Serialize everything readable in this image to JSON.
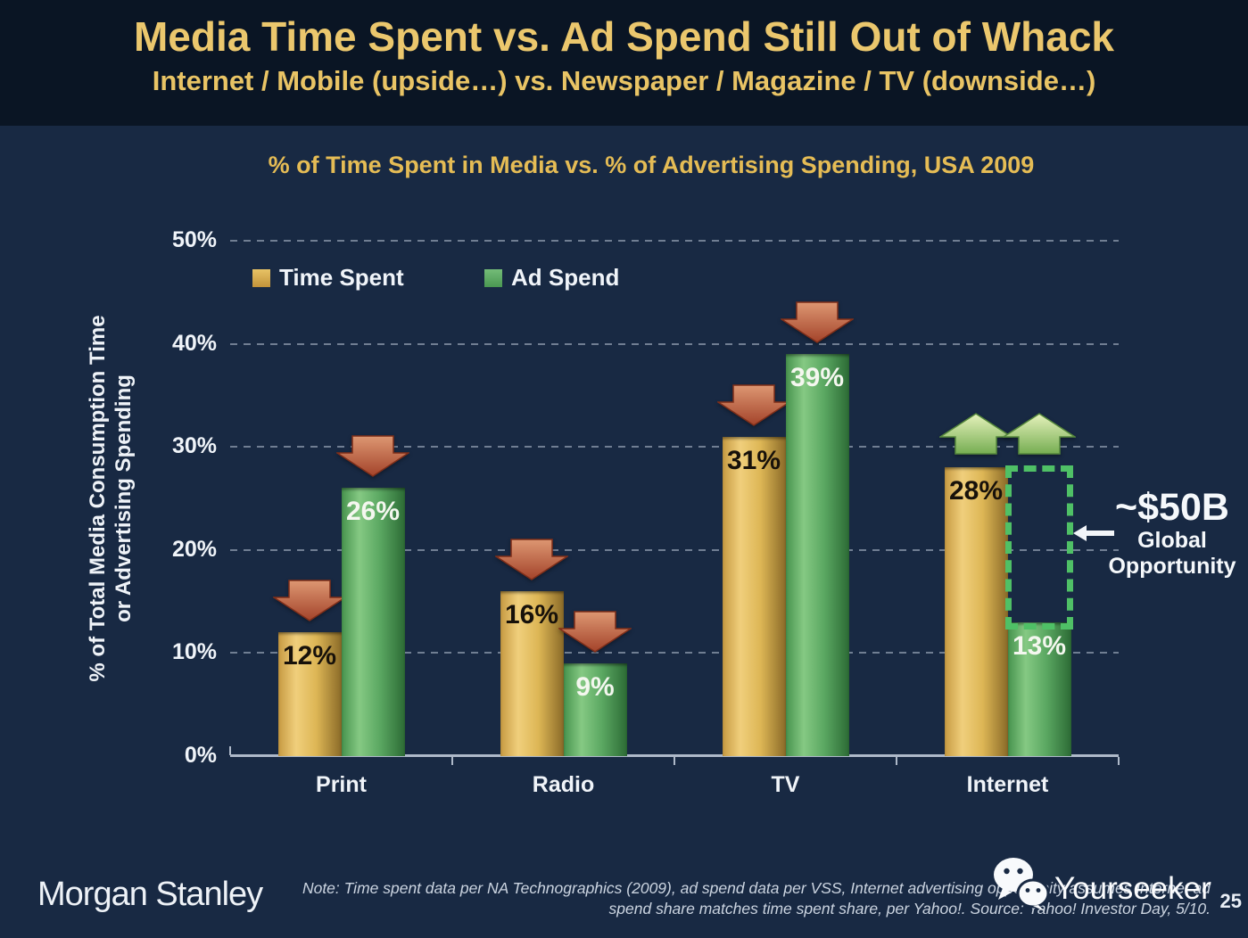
{
  "slide": {
    "title": "Media Time Spent vs. Ad Spend Still Out of Whack",
    "subtitle": "Internet / Mobile (upside…) vs. Newspaper / Magazine / TV (downside…)",
    "page_number": "25"
  },
  "chart_data": {
    "type": "bar",
    "title": "% of Time Spent in Media vs. % of Advertising Spending, USA 2009",
    "categories": [
      "Print",
      "Radio",
      "TV",
      "Internet"
    ],
    "series": [
      {
        "name": "Time Spent",
        "color": "#D9AC48",
        "values": [
          12,
          16,
          31,
          28
        ],
        "labels": [
          "12%",
          "16%",
          "31%",
          "28%"
        ]
      },
      {
        "name": "Ad Spend",
        "color": "#58A35F",
        "values": [
          26,
          9,
          39,
          13
        ],
        "labels": [
          "26%",
          "9%",
          "39%",
          "13%"
        ]
      }
    ],
    "ylabel_line1": "% of Total Media Consumption Time",
    "ylabel_line2": "or Advertising Spending",
    "ylim": [
      0,
      50
    ],
    "yticks": [
      0,
      10,
      20,
      30,
      40,
      50
    ],
    "ytick_labels": [
      "0%",
      "10%",
      "20%",
      "30%",
      "40%",
      "50%"
    ],
    "grid": "horizontal-dashed",
    "legend_position": "top-left-inside",
    "trend_arrows": {
      "Print": "down",
      "Radio": "down",
      "TV": "down",
      "Internet": "up"
    },
    "gap_highlight": {
      "category": "Internet",
      "series": "Ad Spend",
      "from": 13,
      "to": 28
    }
  },
  "annotation": {
    "amount": "~$50B",
    "line1": "Global",
    "line2": "Opportunity"
  },
  "footer": {
    "brand": "Morgan Stanley",
    "note_line1": "Note: Time spent data per NA Technographics (2009), ad spend data per VSS, Internet advertising opportunity assumes Internet ad",
    "note_line2": "spend share matches time spent share, per Yahoo!. Source: Yahoo! Investor Day, 5/10.",
    "watermark": "Yourseeker"
  },
  "colors": {
    "header_bg": "#0A1524",
    "body_bg": "#182943",
    "title_gold": "#EBC76D",
    "chart_heading_gold": "#E5BC55",
    "bar_gold_light": "#F0CF7C",
    "bar_gold_dark": "#8A6A28",
    "bar_green_light": "#85C983",
    "bar_green_dark": "#2C6B35",
    "arrow_down_red_light": "#DD9772",
    "arrow_down_red_dark": "#A3432A",
    "arrow_up_green_light": "#E6F2BC",
    "arrow_up_green_dark": "#76AD52",
    "gap_dash_green": "#4FC066",
    "axis_line": "#AEB9C9",
    "text_white": "#F0F4F9"
  }
}
